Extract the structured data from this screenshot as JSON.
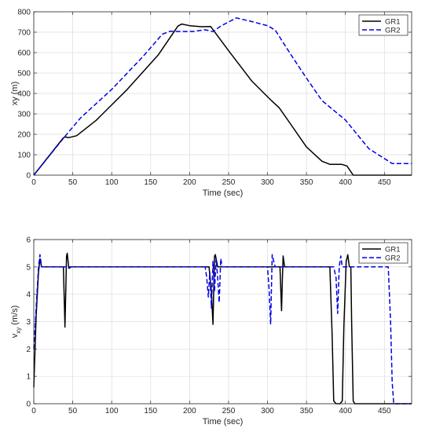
{
  "chart_data": [
    {
      "type": "line",
      "title": "",
      "xlabel": "Time (sec)",
      "ylabel": "xy (m)",
      "ylabel_sub": "",
      "xlim": [
        0,
        485
      ],
      "ylim": [
        0,
        800
      ],
      "xticks": [
        0,
        50,
        100,
        150,
        200,
        250,
        300,
        350,
        400,
        450
      ],
      "yticks": [
        0,
        100,
        200,
        300,
        400,
        500,
        600,
        700,
        800
      ],
      "grid": true,
      "legend": "top-right",
      "series": [
        {
          "name": "GR1",
          "color": "#000000",
          "dash": "solid",
          "x": [
            0,
            38,
            40,
            45,
            55,
            80,
            120,
            160,
            185,
            190,
            200,
            215,
            227,
            250,
            280,
            305,
            315,
            330,
            350,
            370,
            380,
            395,
            402,
            410,
            485
          ],
          "y": [
            0,
            183,
            187,
            184,
            193,
            268,
            420,
            590,
            730,
            740,
            732,
            727,
            728,
            610,
            460,
            365,
            330,
            248,
            138,
            68,
            53,
            53,
            45,
            0,
            0
          ]
        },
        {
          "name": "GR2",
          "color": "#0000e6",
          "dash": "dashed",
          "x": [
            0,
            40,
            60,
            100,
            140,
            165,
            175,
            190,
            205,
            220,
            230,
            240,
            260,
            280,
            300,
            310,
            330,
            350,
            370,
            400,
            430,
            460,
            485
          ],
          "y": [
            0,
            190,
            280,
            420,
            580,
            690,
            705,
            703,
            704,
            712,
            703,
            730,
            770,
            752,
            732,
            710,
            590,
            475,
            365,
            270,
            130,
            57,
            57
          ]
        }
      ]
    },
    {
      "type": "line",
      "title": "",
      "xlabel": "Time (sec)",
      "ylabel": "v",
      "ylabel_sub": "xy",
      "ylabel_unit": " (m/s)",
      "xlim": [
        0,
        485
      ],
      "ylim": [
        0,
        6
      ],
      "xticks": [
        0,
        50,
        100,
        150,
        200,
        250,
        300,
        350,
        400,
        450
      ],
      "yticks": [
        0,
        1,
        2,
        3,
        4,
        5,
        6
      ],
      "grid": true,
      "legend": "top-right",
      "series": [
        {
          "name": "GR1",
          "color": "#000000",
          "dash": "solid",
          "x": [
            0,
            3,
            6,
            8,
            10,
            38,
            40,
            41,
            42,
            43,
            45,
            48,
            225,
            228,
            230,
            231,
            232,
            233,
            236,
            316,
            318,
            319,
            320,
            322,
            324,
            380,
            383,
            385,
            388,
            393,
            396,
            398,
            401,
            403,
            405,
            407,
            408,
            410,
            412,
            485
          ],
          "y": [
            0.6,
            3.2,
            4.8,
            5.3,
            5.0,
            5.0,
            2.8,
            4.1,
            5.4,
            5.5,
            4.95,
            5.0,
            5.0,
            4.1,
            2.9,
            4.2,
            5.4,
            5.45,
            5.0,
            5.0,
            3.4,
            4.5,
            5.4,
            5.0,
            5.0,
            5.0,
            2.5,
            0.1,
            0.0,
            0.0,
            0.1,
            2.8,
            5.2,
            5.45,
            5.0,
            5.0,
            3.0,
            0.1,
            0.0,
            0.0
          ]
        },
        {
          "name": "GR2",
          "color": "#0000e6",
          "dash": "dashed",
          "x": [
            0,
            3,
            6,
            8,
            10,
            220,
            222,
            224,
            226,
            228,
            230,
            232,
            234,
            236,
            238,
            240,
            242,
            300,
            302,
            304,
            306,
            308,
            310,
            385,
            388,
            390,
            392,
            394,
            396,
            398,
            455,
            458,
            460,
            462,
            485
          ],
          "y": [
            2.0,
            3.5,
            5.0,
            5.45,
            5.0,
            5.0,
            4.6,
            3.9,
            4.8,
            3.5,
            5.2,
            4.1,
            5.3,
            4.6,
            3.7,
            5.3,
            5.0,
            5.0,
            4.2,
            2.9,
            5.45,
            5.2,
            5.0,
            5.0,
            4.6,
            3.3,
            5.0,
            5.4,
            5.0,
            5.0,
            5.0,
            3.0,
            0.8,
            0.0,
            0.0
          ]
        }
      ]
    }
  ]
}
